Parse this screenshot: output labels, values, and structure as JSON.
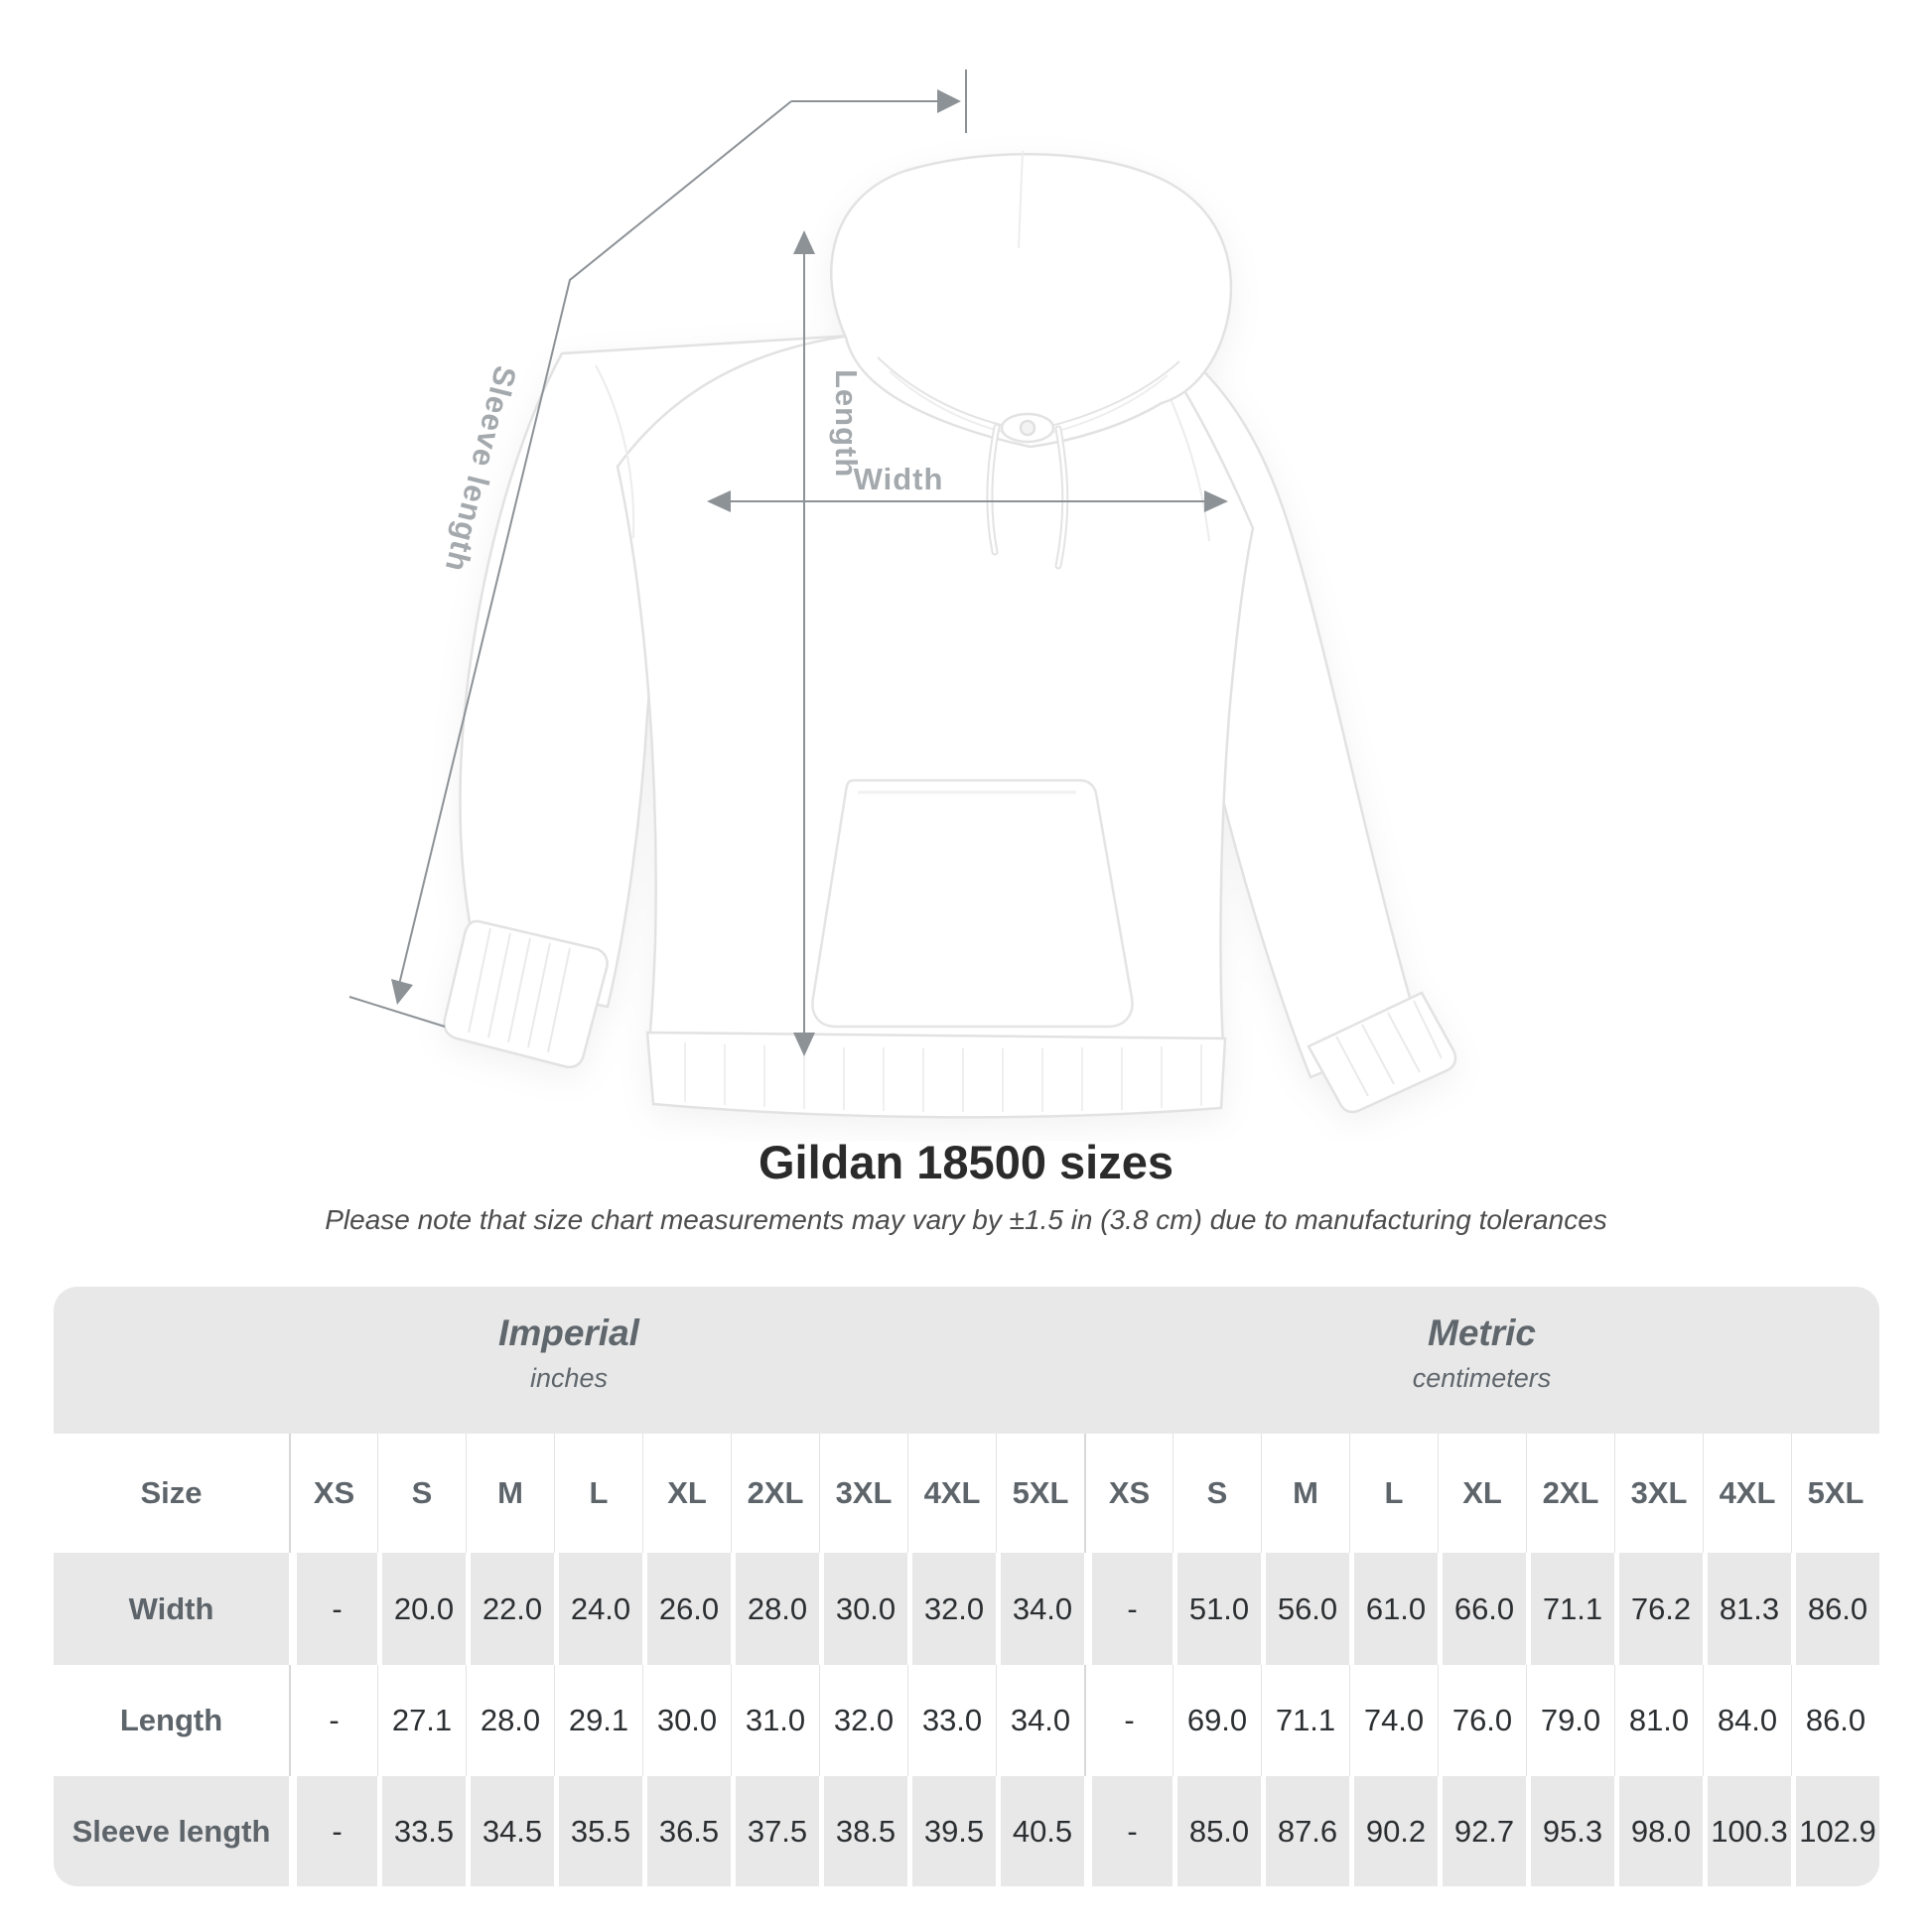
{
  "page": {
    "title": "Gildan 18500 sizes",
    "subtitle": "Please note that size chart measurements may vary by ±1.5 in (3.8 cm) due to manufacturing tolerances"
  },
  "diagram": {
    "length_label": "Length",
    "width_label": "Width",
    "sleeve_label": "Sleeve length"
  },
  "chart_data": {
    "type": "table",
    "title": "Gildan 18500 sizes",
    "note": "Please note that size chart measurements may vary by ±1.5 in (3.8 cm) due to manufacturing tolerances",
    "row_header": "Size",
    "sizes": [
      "XS",
      "S",
      "M",
      "L",
      "XL",
      "2XL",
      "3XL",
      "4XL",
      "5XL"
    ],
    "groups": [
      {
        "label": "Imperial",
        "units": "inches"
      },
      {
        "label": "Metric",
        "units": "centimeters"
      }
    ],
    "rows": [
      {
        "label": "Width",
        "imperial": [
          "-",
          "20.0",
          "22.0",
          "24.0",
          "26.0",
          "28.0",
          "30.0",
          "32.0",
          "34.0"
        ],
        "metric": [
          "-",
          "51.0",
          "56.0",
          "61.0",
          "66.0",
          "71.1",
          "76.2",
          "81.3",
          "86.0"
        ]
      },
      {
        "label": "Length",
        "imperial": [
          "-",
          "27.1",
          "28.0",
          "29.1",
          "30.0",
          "31.0",
          "32.0",
          "33.0",
          "34.0"
        ],
        "metric": [
          "-",
          "69.0",
          "71.1",
          "74.0",
          "76.0",
          "79.0",
          "81.0",
          "84.0",
          "86.0"
        ]
      },
      {
        "label": "Sleeve length",
        "imperial": [
          "-",
          "33.5",
          "34.5",
          "35.5",
          "36.5",
          "37.5",
          "38.5",
          "39.5",
          "40.5"
        ],
        "metric": [
          "-",
          "85.0",
          "87.6",
          "90.2",
          "92.7",
          "95.3",
          "98.0",
          "100.3",
          "102.9"
        ]
      }
    ]
  },
  "colors": {
    "stripe": "#e8e8e8",
    "arrow": "#8d9297",
    "dim_label": "#a4a9ad",
    "header_text": "#5d646a",
    "value_text": "#2c2f32"
  }
}
